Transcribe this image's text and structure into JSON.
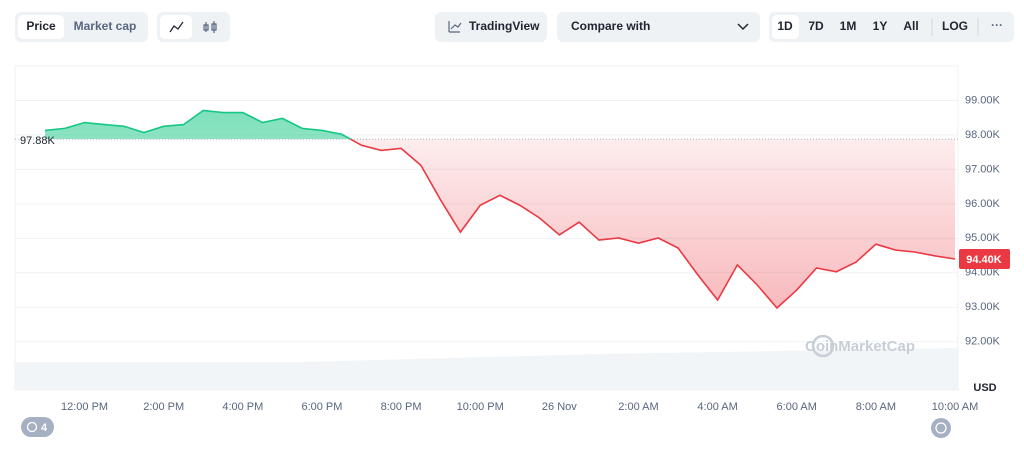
{
  "toolbar": {
    "tabs": [
      "Price",
      "Market cap"
    ],
    "tradingview": "TradingView",
    "compare": "Compare with",
    "ranges": [
      "1D",
      "7D",
      "1M",
      "1Y",
      "All"
    ],
    "log": "LOG",
    "more": "···"
  },
  "chart_data": {
    "type": "line",
    "categories": [
      null,
      null,
      "12:00 PM",
      null,
      null,
      null,
      "2:00 PM",
      null,
      null,
      null,
      "4:00 PM",
      null,
      null,
      null,
      "6:00 PM",
      null,
      null,
      null,
      "8:00 PM",
      null,
      null,
      null,
      "10:00 PM",
      null,
      null,
      null,
      "26 Nov",
      null,
      null,
      null,
      "2:00 AM",
      null,
      null,
      null,
      "4:00 AM",
      null,
      null,
      null,
      "6:00 AM",
      null,
      null,
      null,
      "8:00 AM",
      null,
      null,
      null,
      "10:00 AM"
    ],
    "values": [
      98.13,
      98.19,
      98.36,
      98.3,
      98.25,
      98.07,
      98.25,
      98.3,
      98.71,
      98.65,
      98.65,
      98.36,
      98.48,
      98.19,
      98.13,
      98.02,
      97.7,
      97.55,
      97.61,
      97.12,
      96.11,
      95.18,
      95.96,
      96.25,
      95.96,
      95.59,
      95.1,
      95.47,
      94.95,
      95.01,
      94.86,
      95.01,
      94.72,
      93.94,
      93.21,
      94.23,
      93.65,
      92.98,
      93.5,
      94.14,
      94.03,
      94.31,
      94.83,
      94.66,
      94.6,
      94.49,
      94.4
    ],
    "value_labels": [
      null,
      null,
      null,
      null,
      null,
      null,
      null,
      null,
      null,
      null,
      null,
      null,
      null,
      null,
      null,
      null,
      null,
      null,
      null,
      null,
      null,
      null,
      null,
      null,
      null,
      null,
      null,
      null,
      null,
      null,
      null,
      null,
      null,
      null,
      null,
      null,
      null,
      null,
      null,
      null,
      null,
      null,
      null,
      null,
      null,
      null,
      "94.40K"
    ],
    "baseline": {
      "value": 97.88,
      "label": "97.88K"
    },
    "up_color": "#16c784",
    "down_color": "#ea3943",
    "ylim": [
      90.6,
      100
    ],
    "yticks": [
      {
        "value": 92,
        "label": "92.00K"
      },
      {
        "value": 93,
        "label": "93.00K"
      },
      {
        "value": 94,
        "label": "94.00K"
      },
      {
        "value": 95,
        "label": "95.00K"
      },
      {
        "value": 96,
        "label": "96.00K"
      },
      {
        "value": 97,
        "label": "97.00K"
      },
      {
        "value": 98,
        "label": "98.00K"
      },
      {
        "value": 99,
        "label": "99.00K"
      }
    ],
    "grid": true,
    "y_unit": "USD"
  },
  "watermark": "CoinMarketCap",
  "badge": "4"
}
